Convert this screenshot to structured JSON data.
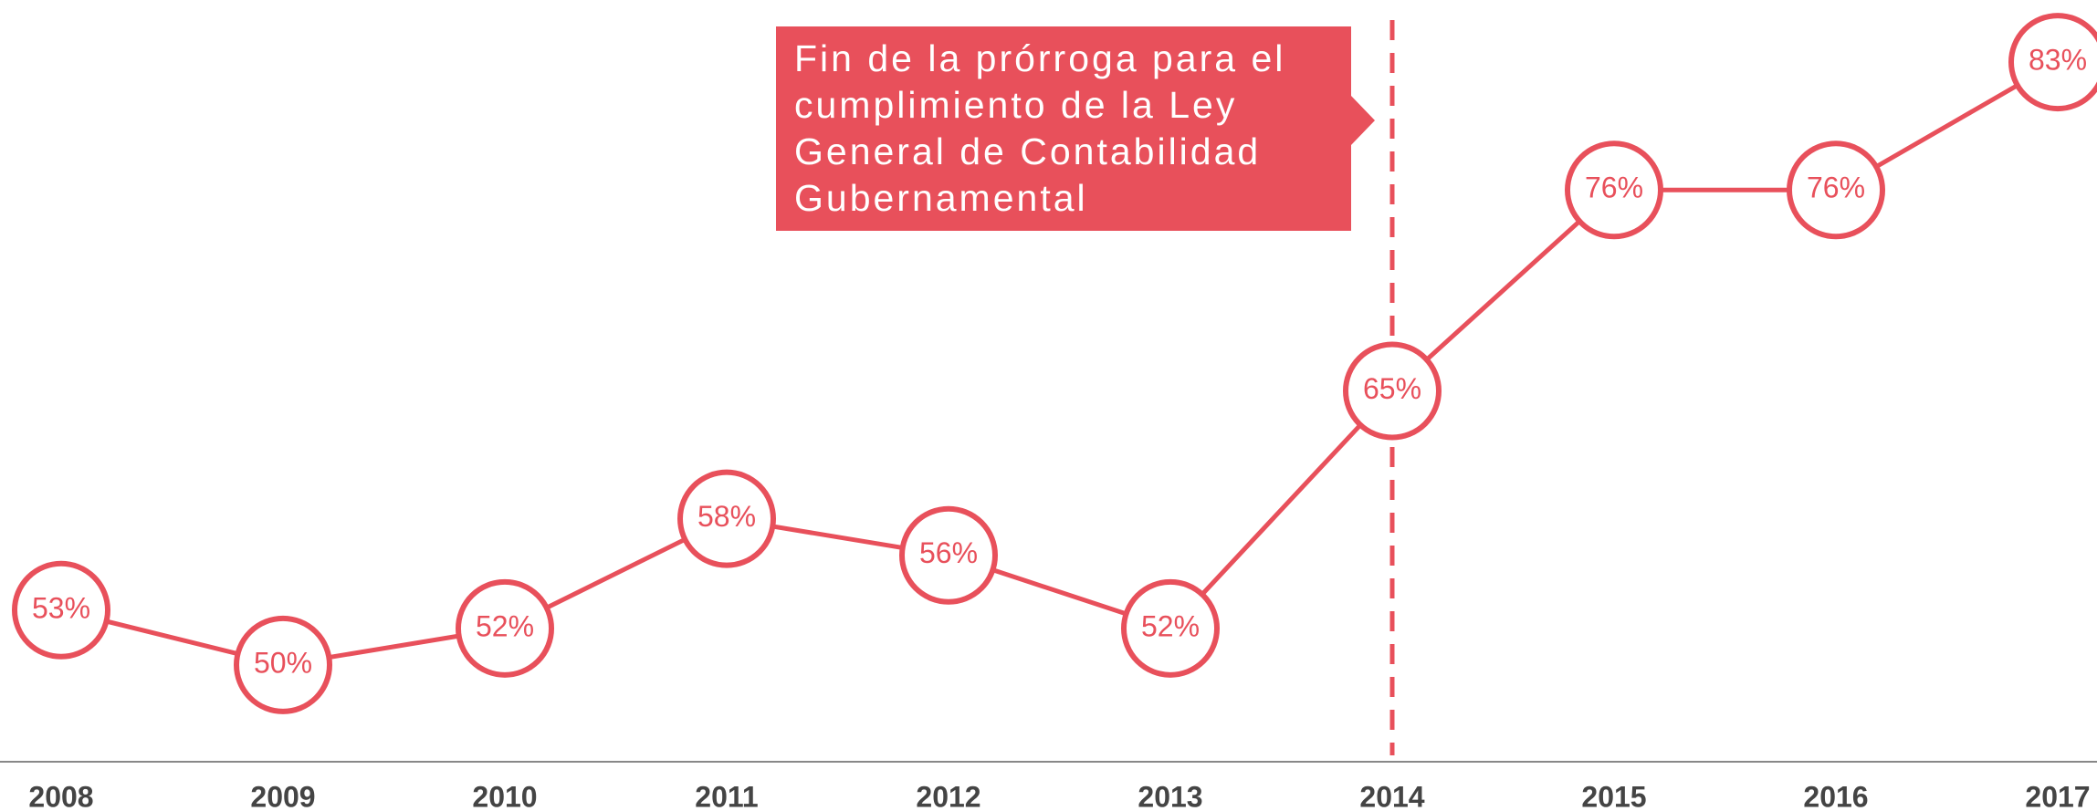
{
  "chart_data": {
    "type": "line",
    "categories": [
      "2008",
      "2009",
      "2010",
      "2011",
      "2012",
      "2013",
      "2014",
      "2015",
      "2016",
      "2017"
    ],
    "series": [
      {
        "color": "#e8505b",
        "values": [
          53,
          50,
          52,
          58,
          56,
          52,
          65,
          76,
          76,
          83
        ],
        "value_labels": [
          "53%",
          "50%",
          "52%",
          "58%",
          "56%",
          "52%",
          "65%",
          "76%",
          "76%",
          "83%"
        ]
      }
    ],
    "ylim": [
      44.7,
      86.4
    ],
    "annotation": {
      "lines": [
        "Fin de la prórroga para el",
        "cumplimiento de la Ley",
        "General de Contabilidad",
        "Gubernamental"
      ]
    }
  }
}
